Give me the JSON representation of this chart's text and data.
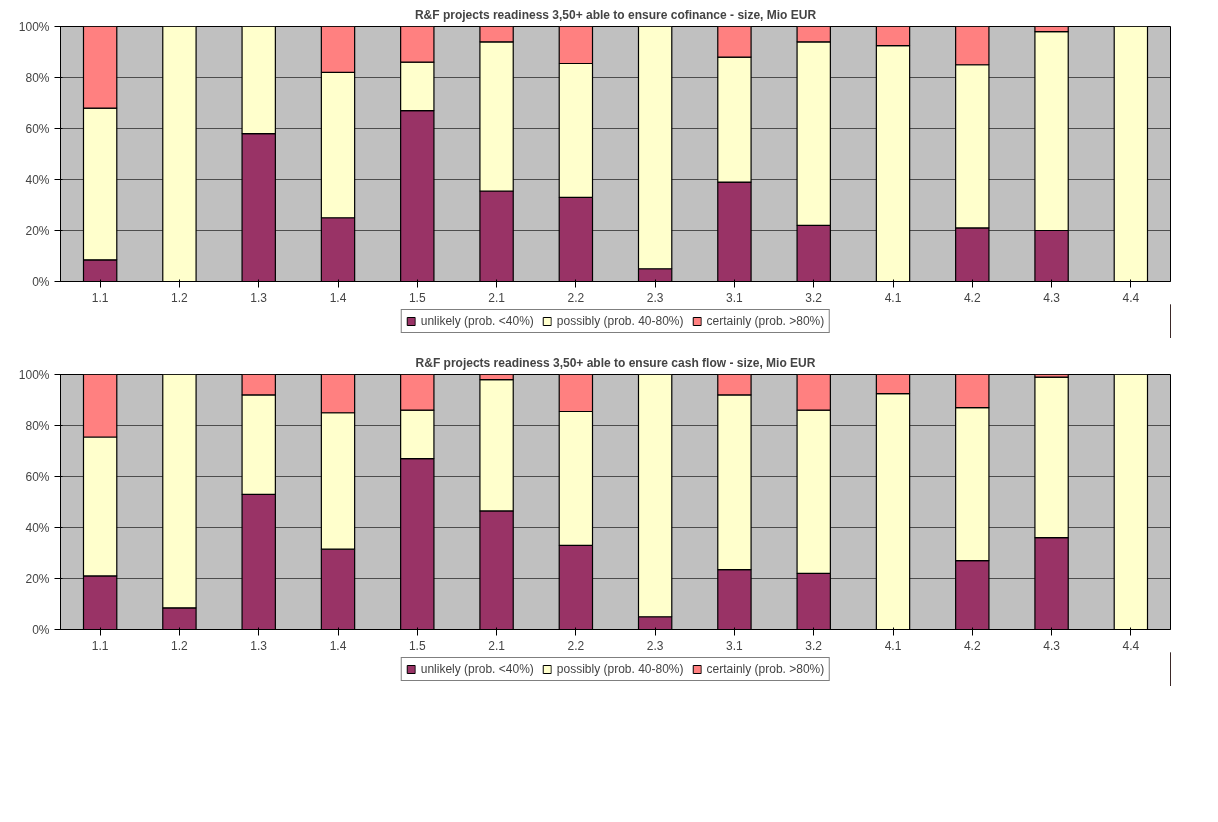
{
  "chart_data": [
    {
      "type": "bar",
      "title": "R&F projects readiness 3,50+ able to ensure cofinance - size, Mio EUR",
      "categories": [
        "1.1",
        "1.2",
        "1.3",
        "1.4",
        "1.5",
        "2.1",
        "2.2",
        "2.3",
        "3.1",
        "3.2",
        "4.1",
        "4.2",
        "4.3",
        "4.4"
      ],
      "stacked": true,
      "series": [
        {
          "name": "unlikely (prob. <40%)",
          "color": "#993366",
          "values": [
            8.5,
            0,
            58,
            25,
            67,
            35.5,
            33,
            5,
            39,
            22,
            0,
            21,
            20,
            0
          ]
        },
        {
          "name": "possibly (prob. 40-80%)",
          "color": "#ffffcc",
          "values": [
            59.5,
            100,
            42,
            57,
            19,
            58.5,
            52.5,
            95,
            49,
            72,
            92.5,
            64,
            78,
            100
          ]
        },
        {
          "name": "certainly (prob. >80%)",
          "color": "#ff8080",
          "values": [
            32,
            0,
            0,
            18,
            14,
            6,
            14.5,
            0,
            12,
            6,
            7.5,
            15,
            2,
            0
          ]
        }
      ],
      "ylim": [
        0,
        100
      ],
      "yticks": [
        {
          "value": 0,
          "label": "0%"
        },
        {
          "value": 20,
          "label": "20%"
        },
        {
          "value": 40,
          "label": "40%"
        },
        {
          "value": 60,
          "label": "60%"
        },
        {
          "value": 80,
          "label": "80%"
        },
        {
          "value": 100,
          "label": "100%"
        }
      ],
      "grid": "y",
      "legend": "bottom"
    },
    {
      "type": "bar",
      "title": "R&F projects readiness 3,50+ able to ensure cash flow - size, Mio EUR",
      "categories": [
        "1.1",
        "1.2",
        "1.3",
        "1.4",
        "1.5",
        "2.1",
        "2.2",
        "2.3",
        "3.1",
        "3.2",
        "4.1",
        "4.2",
        "4.3",
        "4.4"
      ],
      "stacked": true,
      "series": [
        {
          "name": "unlikely (prob. <40%)",
          "color": "#993366",
          "values": [
            21,
            8.5,
            53,
            31.5,
            67,
            46.5,
            33,
            5,
            23.5,
            22,
            0,
            27,
            36,
            0
          ]
        },
        {
          "name": "possibly (prob. 40-80%)",
          "color": "#ffffcc",
          "values": [
            54.5,
            91.5,
            39,
            53.5,
            19,
            51.5,
            52.5,
            95,
            68.5,
            64,
            92.5,
            60,
            63,
            100
          ]
        },
        {
          "name": "certainly (prob. >80%)",
          "color": "#ff8080",
          "values": [
            24.5,
            0,
            8,
            15,
            14,
            2,
            14.5,
            0,
            8,
            14,
            7.5,
            13,
            1,
            0
          ]
        }
      ],
      "ylim": [
        0,
        100
      ],
      "yticks": [
        {
          "value": 0,
          "label": "0%"
        },
        {
          "value": 20,
          "label": "20%"
        },
        {
          "value": 40,
          "label": "40%"
        },
        {
          "value": 60,
          "label": "60%"
        },
        {
          "value": 80,
          "label": "80%"
        },
        {
          "value": 100,
          "label": "100%"
        }
      ],
      "grid": "y",
      "legend": "bottom"
    }
  ]
}
